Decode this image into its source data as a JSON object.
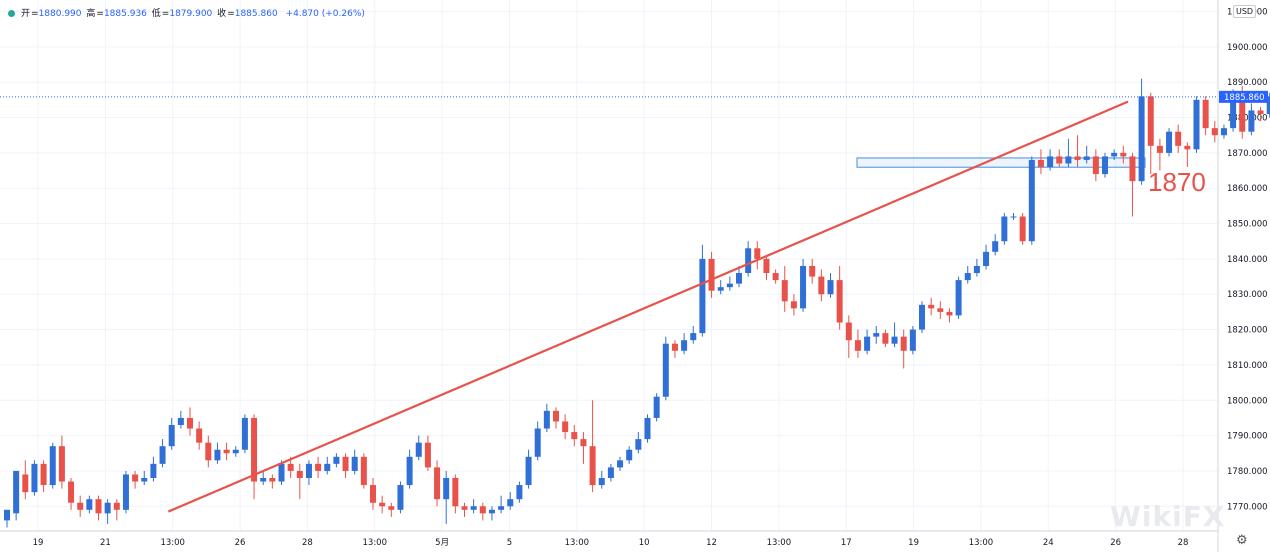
{
  "header": {
    "open_label": "开",
    "open": "1880.990",
    "high_label": "高",
    "high": "1885.936",
    "low_label": "低",
    "low": "1879.900",
    "close_label": "收",
    "close": "1885.860",
    "change": "+4.870 (+0.26%)"
  },
  "currency": "USD",
  "watermark": "WikiFX",
  "settings_icon": "gear-icon",
  "colors": {
    "up": "#2f6fd6",
    "down": "#e8524a",
    "trendline": "#e8524a",
    "zone": "#6aa8e8",
    "last_price": "#2962ff"
  },
  "chart_data": {
    "type": "candlestick",
    "ylim": [
      1763,
      1911
    ],
    "y_ticks": [
      1770,
      1780,
      1790,
      1800,
      1810,
      1820,
      1830,
      1840,
      1850,
      1860,
      1870,
      1880,
      1890,
      1900,
      1910
    ],
    "y_tick_labels": [
      "1770.000",
      "1780.000",
      "1790.000",
      "1800.000",
      "1810.000",
      "1820.000",
      "1830.000",
      "1840.000",
      "1850.000",
      "1860.000",
      "1870.000",
      "1880.000",
      "1890.000",
      "1900.000",
      "1910.000"
    ],
    "x_tick_labels": [
      "19",
      "21",
      "13:00",
      "26",
      "28",
      "13:00",
      "5月",
      "5",
      "13:00",
      "10",
      "12",
      "13:00",
      "17",
      "19",
      "13:00",
      "24",
      "26",
      "28"
    ],
    "last_price_label": "1885.860",
    "candles": [
      [
        1766,
        1769,
        1764,
        1768
      ],
      [
        1768,
        1780,
        1766,
        1779
      ],
      [
        1779,
        1774,
        1772,
        1783
      ],
      [
        1774,
        1782,
        1773,
        1783
      ],
      [
        1782,
        1776,
        1774,
        1783
      ],
      [
        1776,
        1787,
        1775,
        1788
      ],
      [
        1787,
        1777,
        1775,
        1790
      ],
      [
        1777,
        1771,
        1769,
        1778
      ],
      [
        1771,
        1769,
        1767,
        1773
      ],
      [
        1769,
        1772,
        1768,
        1773
      ],
      [
        1772,
        1768,
        1766,
        1773
      ],
      [
        1768,
        1771,
        1765,
        1772
      ],
      [
        1771,
        1769,
        1766,
        1772
      ],
      [
        1769,
        1779,
        1768,
        1780
      ],
      [
        1779,
        1777,
        1775,
        1780
      ],
      [
        1777,
        1778,
        1776,
        1780
      ],
      [
        1778,
        1782,
        1777,
        1784
      ],
      [
        1782,
        1787,
        1781,
        1789
      ],
      [
        1787,
        1793,
        1786,
        1795
      ],
      [
        1793,
        1795,
        1792,
        1797
      ],
      [
        1795,
        1792,
        1790,
        1798
      ],
      [
        1792,
        1788,
        1786,
        1794
      ],
      [
        1788,
        1783,
        1781,
        1790
      ],
      [
        1783,
        1786,
        1782,
        1788
      ],
      [
        1786,
        1785,
        1783,
        1788
      ],
      [
        1785,
        1786,
        1784,
        1787
      ],
      [
        1786,
        1795,
        1785,
        1796
      ],
      [
        1795,
        1777,
        1772,
        1796
      ],
      [
        1777,
        1778,
        1776,
        1780
      ],
      [
        1778,
        1777,
        1775,
        1779
      ],
      [
        1777,
        1782,
        1776,
        1783
      ],
      [
        1782,
        1780,
        1778,
        1784
      ],
      [
        1780,
        1778,
        1772,
        1782
      ],
      [
        1778,
        1782,
        1776,
        1783
      ],
      [
        1782,
        1780,
        1778,
        1784
      ],
      [
        1780,
        1782,
        1779,
        1784
      ],
      [
        1782,
        1784,
        1781,
        1785
      ],
      [
        1784,
        1780,
        1778,
        1785
      ],
      [
        1780,
        1784,
        1779,
        1786
      ],
      [
        1784,
        1776,
        1775,
        1785
      ],
      [
        1776,
        1771,
        1769,
        1778
      ],
      [
        1771,
        1770,
        1768,
        1773
      ],
      [
        1770,
        1769,
        1767,
        1771
      ],
      [
        1769,
        1776,
        1768,
        1777
      ],
      [
        1776,
        1784,
        1775,
        1786
      ],
      [
        1784,
        1788,
        1783,
        1790
      ],
      [
        1788,
        1781,
        1780,
        1790
      ],
      [
        1781,
        1772,
        1770,
        1783
      ],
      [
        1772,
        1778,
        1765,
        1780
      ],
      [
        1778,
        1770,
        1768,
        1779
      ],
      [
        1770,
        1769,
        1767,
        1771
      ],
      [
        1769,
        1770,
        1768,
        1772
      ],
      [
        1770,
        1768,
        1766,
        1771
      ],
      [
        1768,
        1769,
        1766,
        1770
      ],
      [
        1769,
        1770,
        1768,
        1773
      ],
      [
        1770,
        1772,
        1769,
        1774
      ],
      [
        1772,
        1776,
        1771,
        1777
      ],
      [
        1776,
        1784,
        1775,
        1786
      ],
      [
        1784,
        1792,
        1783,
        1794
      ],
      [
        1792,
        1797,
        1791,
        1799
      ],
      [
        1797,
        1794,
        1792,
        1798
      ],
      [
        1794,
        1791,
        1789,
        1796
      ],
      [
        1791,
        1789,
        1787,
        1793
      ],
      [
        1789,
        1787,
        1782,
        1791
      ],
      [
        1787,
        1776,
        1774,
        1800
      ],
      [
        1776,
        1778,
        1775,
        1780
      ],
      [
        1778,
        1781,
        1777,
        1782
      ],
      [
        1781,
        1783,
        1780,
        1784
      ],
      [
        1783,
        1786,
        1782,
        1787
      ],
      [
        1786,
        1789,
        1785,
        1791
      ],
      [
        1789,
        1795,
        1788,
        1796
      ],
      [
        1795,
        1801,
        1794,
        1802
      ],
      [
        1801,
        1816,
        1800,
        1818
      ],
      [
        1816,
        1814,
        1812,
        1817
      ],
      [
        1814,
        1817,
        1813,
        1819
      ],
      [
        1817,
        1819,
        1816,
        1821
      ],
      [
        1819,
        1840,
        1818,
        1844
      ],
      [
        1840,
        1831,
        1829,
        1842
      ],
      [
        1831,
        1832,
        1830,
        1834
      ],
      [
        1832,
        1833,
        1831,
        1835
      ],
      [
        1833,
        1836,
        1832,
        1838
      ],
      [
        1836,
        1843,
        1835,
        1845
      ],
      [
        1843,
        1840,
        1837,
        1845
      ],
      [
        1840,
        1836,
        1834,
        1841
      ],
      [
        1836,
        1834,
        1833,
        1837
      ],
      [
        1834,
        1828,
        1825,
        1838
      ],
      [
        1828,
        1826,
        1824,
        1830
      ],
      [
        1826,
        1838,
        1825,
        1840
      ],
      [
        1838,
        1835,
        1833,
        1840
      ],
      [
        1835,
        1830,
        1828,
        1837
      ],
      [
        1830,
        1834,
        1829,
        1836
      ],
      [
        1834,
        1822,
        1820,
        1838
      ],
      [
        1822,
        1817,
        1812,
        1824
      ],
      [
        1817,
        1814,
        1812,
        1820
      ],
      [
        1814,
        1818,
        1813,
        1820
      ],
      [
        1818,
        1819,
        1816,
        1821
      ],
      [
        1819,
        1816,
        1815,
        1820
      ],
      [
        1816,
        1818,
        1815,
        1822
      ],
      [
        1818,
        1814,
        1809,
        1820
      ],
      [
        1814,
        1820,
        1813,
        1821
      ],
      [
        1820,
        1827,
        1819,
        1828
      ],
      [
        1827,
        1826,
        1824,
        1829
      ],
      [
        1826,
        1825,
        1823,
        1828
      ],
      [
        1825,
        1824,
        1822,
        1826
      ],
      [
        1824,
        1834,
        1823,
        1835
      ],
      [
        1834,
        1836,
        1833,
        1838
      ],
      [
        1836,
        1838,
        1835,
        1840
      ],
      [
        1838,
        1842,
        1837,
        1844
      ],
      [
        1842,
        1845,
        1841,
        1847
      ],
      [
        1845,
        1852,
        1844,
        1853
      ],
      [
        1852,
        1852,
        1851,
        1853
      ],
      [
        1852,
        1845,
        1844,
        1853
      ],
      [
        1845,
        1868,
        1844,
        1869
      ],
      [
        1868,
        1866,
        1864,
        1871
      ],
      [
        1866,
        1869,
        1865,
        1871
      ],
      [
        1869,
        1867,
        1866,
        1871
      ],
      [
        1867,
        1869,
        1866,
        1874
      ],
      [
        1869,
        1868,
        1866,
        1875
      ],
      [
        1868,
        1869,
        1867,
        1872
      ],
      [
        1869,
        1864,
        1862,
        1871
      ],
      [
        1864,
        1869,
        1863,
        1870
      ],
      [
        1869,
        1870,
        1868,
        1871
      ],
      [
        1870,
        1869,
        1867,
        1872
      ],
      [
        1869,
        1862,
        1852,
        1870
      ],
      [
        1862,
        1886,
        1861,
        1891
      ],
      [
        1886,
        1872,
        1864,
        1887
      ],
      [
        1872,
        1870,
        1865,
        1874
      ],
      [
        1870,
        1876,
        1869,
        1877
      ],
      [
        1876,
        1872,
        1870,
        1878
      ],
      [
        1872,
        1871,
        1866,
        1873
      ],
      [
        1871,
        1885,
        1870,
        1886
      ],
      [
        1885,
        1877,
        1875,
        1886
      ],
      [
        1877,
        1875,
        1873,
        1879
      ],
      [
        1875,
        1877,
        1874,
        1878
      ],
      [
        1877,
        1887,
        1876,
        1888
      ],
      [
        1887,
        1876,
        1874,
        1889
      ],
      [
        1876,
        1882,
        1875,
        1884
      ],
      [
        1882,
        1881,
        1879,
        1883
      ],
      [
        1881,
        1886,
        1880,
        1887
      ]
    ],
    "trendline": {
      "from": [
        7.7,
        1768.5
      ],
      "to": [
        53.5,
        1884.5
      ]
    },
    "horizontal_zone": {
      "low": 1866.5,
      "high": 1868,
      "label": "1870"
    }
  }
}
